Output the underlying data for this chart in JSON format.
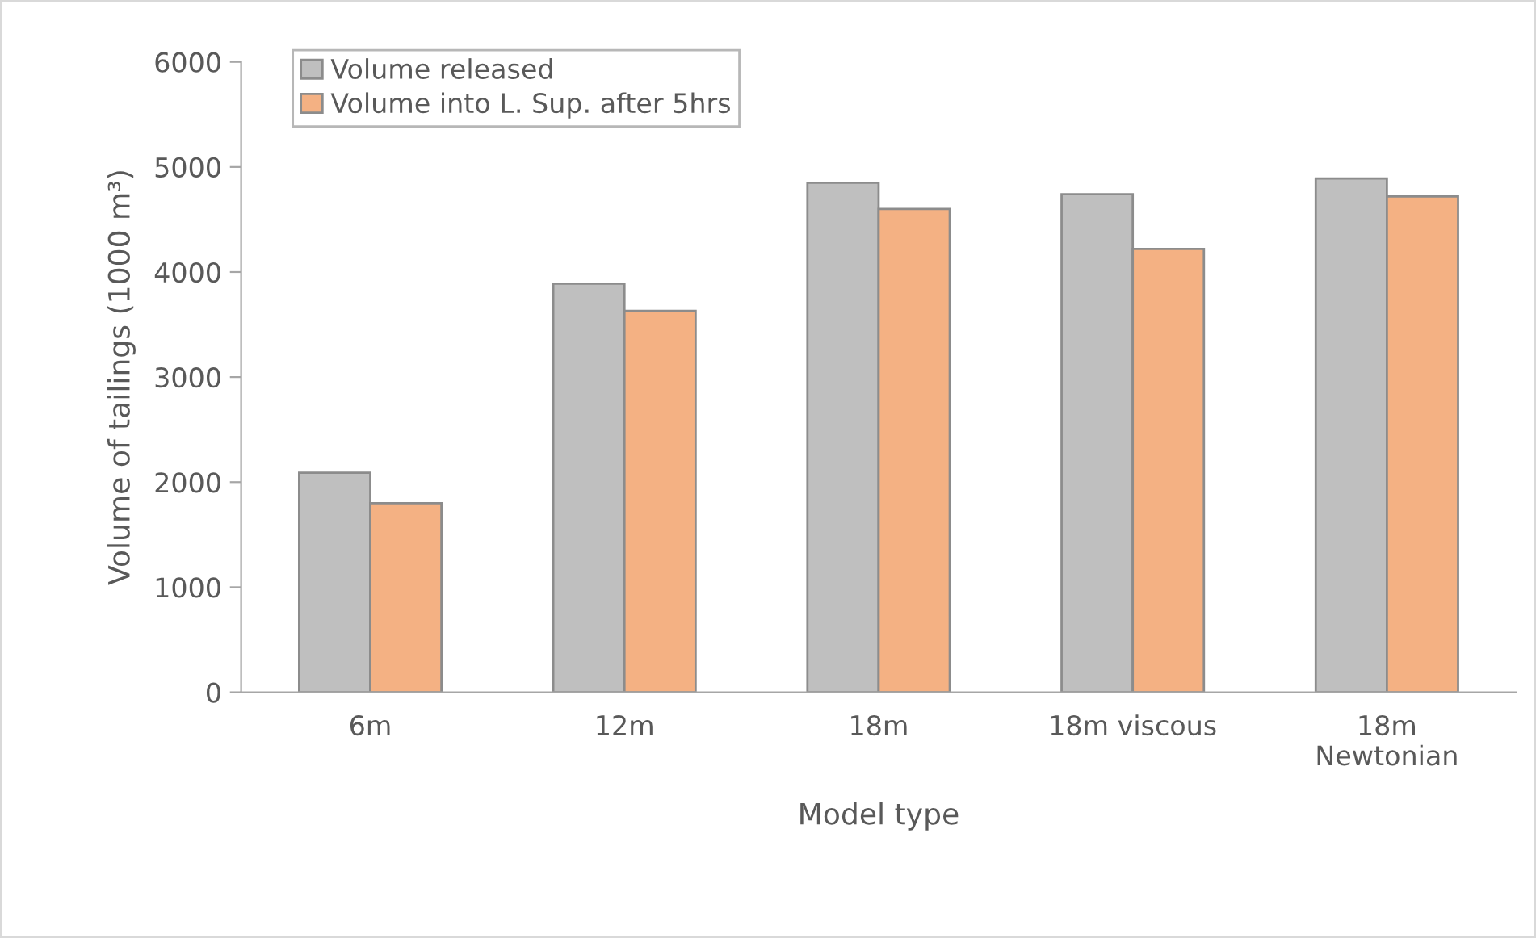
{
  "chart_data": {
    "type": "bar",
    "xlabel": "Model type",
    "ylabel": "Volume of tailings (1000 m³)",
    "categories": [
      "6m",
      "12m",
      "18m",
      "18m viscous",
      "18m\nNewtonian"
    ],
    "series": [
      {
        "name": "Volume released",
        "color": "#bfbfbf",
        "values": [
          2090,
          3890,
          4850,
          4740,
          4890
        ]
      },
      {
        "name": "Volume into L. Sup. after 5hrs",
        "color": "#f4b183",
        "values": [
          1800,
          3630,
          4600,
          4220,
          4720
        ]
      }
    ],
    "ylim": [
      0,
      6000
    ],
    "yticks": [
      0,
      1000,
      2000,
      3000,
      4000,
      5000,
      6000
    ],
    "legend": "top left",
    "grid": false
  }
}
